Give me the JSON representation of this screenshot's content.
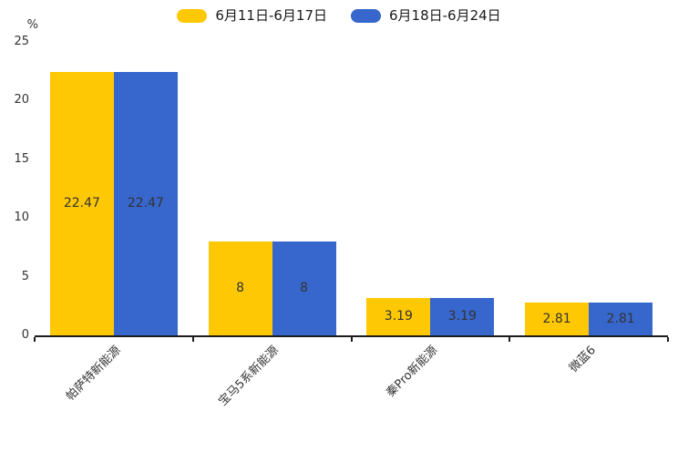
{
  "chart": {
    "unit_label": "%",
    "legend": [
      {
        "label": "6月11日-6月17日",
        "color": "#FFC805"
      },
      {
        "label": "6月18日-6月24日",
        "color": "#3767CC"
      }
    ]
  },
  "chart_data": {
    "type": "bar",
    "title": "",
    "xlabel": "",
    "ylabel": "%",
    "categories": [
      "帕萨特新能源",
      "宝马5系新能源",
      "秦Pro新能源",
      "微蓝6"
    ],
    "series": [
      {
        "name": "6月11日-6月17日",
        "color": "#FFC805",
        "values": [
          22.47,
          8,
          3.19,
          2.81
        ]
      },
      {
        "name": "6月18日-6月24日",
        "color": "#3767CC",
        "values": [
          22.47,
          8,
          3.19,
          2.81
        ]
      }
    ],
    "value_labels": [
      [
        "22.47",
        "8",
        "3.19",
        "2.81"
      ],
      [
        "22.47",
        "8",
        "3.19",
        "2.81"
      ]
    ],
    "ylim": [
      0,
      25
    ],
    "yticks": [
      0,
      5,
      10,
      15,
      20,
      25
    ],
    "grid": false,
    "legend_position": "top-center",
    "value_label_position": "inside-center",
    "category_label_rotation_deg": 45
  }
}
